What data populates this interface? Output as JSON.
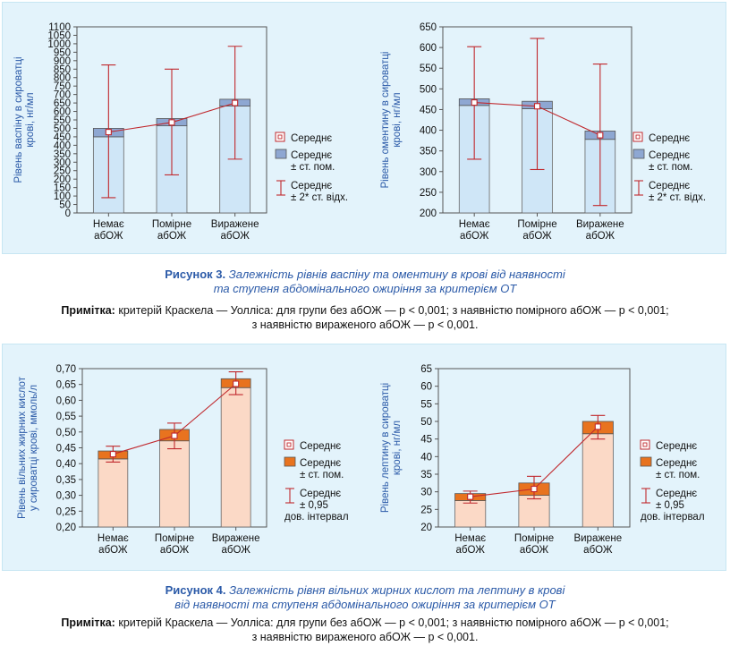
{
  "figure3": {
    "caption_num": "Рисунок 3.",
    "caption_line1": "Залежність рівнів васпіну та оментину в крові від наявності",
    "caption_line2": "та ступеня абдомінального ожиріння за критерієм ОТ",
    "note_label": "Примітка:",
    "note_line1": "критерій Краскела — Уолліса: для групи без абОЖ — p < 0,001; з наявністю помірного абОЖ — p < 0,001;",
    "note_line2": "з наявністю вираженого абОЖ — p < 0,001."
  },
  "figure4": {
    "caption_num": "Рисунок 4.",
    "caption_line1": "Залежність рівня вільних жирних кислот та лептину в крові",
    "caption_line2": "від наявності та ступеня абдомінального ожиріння за критерієм ОТ",
    "note_label": "Примітка:",
    "note_line1": "критерій Краскела — Уолліса: для групи без абОЖ — p < 0,001; з наявністю помірного абОЖ — p < 0,001;",
    "note_line2": "з наявністю вираженого абОЖ — p < 0,001."
  },
  "chart_data": [
    {
      "type": "bar",
      "ylabel_lines": [
        "Рівень васпіну в сироватці",
        "крові, нг/мл"
      ],
      "ylim": [
        0,
        1100
      ],
      "yticks": [
        "0",
        "50",
        "100",
        "150",
        "200",
        "250",
        "300",
        "350",
        "400",
        "450",
        "500",
        "550",
        "600",
        "650",
        "700",
        "750",
        "800",
        "850",
        "900",
        "950",
        "1000",
        "1050",
        "1100"
      ],
      "categories": [
        [
          "Немає",
          "абОЖ"
        ],
        [
          "Помірне",
          "абОЖ"
        ],
        [
          "Виражене",
          "абОЖ"
        ]
      ],
      "mean": [
        478,
        535,
        650
      ],
      "se_low": [
        450,
        515,
        632
      ],
      "se_high": [
        500,
        558,
        672
      ],
      "whisker_low": [
        90,
        225,
        318
      ],
      "whisker_high": [
        875,
        850,
        985
      ],
      "legend": {
        "mean": "Середнє",
        "se": [
          "Середнє",
          "± ст. пом."
        ],
        "ci": [
          "Середнє",
          "± 2* ст. відх."
        ]
      },
      "colors": {
        "bar": "#cfe6f7",
        "box": "#8ea7d2",
        "line": "#c0282d"
      }
    },
    {
      "type": "bar",
      "ylabel_lines": [
        "Рівень оментину в сироватці",
        "крові, нг/мл"
      ],
      "ylim": [
        200,
        650
      ],
      "yticks": [
        "200",
        "250",
        "300",
        "350",
        "400",
        "450",
        "500",
        "550",
        "600",
        "650"
      ],
      "categories": [
        [
          "Немає",
          "абОЖ"
        ],
        [
          "Помірне",
          "абОЖ"
        ],
        [
          "Виражене",
          "абОЖ"
        ]
      ],
      "mean": [
        467,
        458,
        388
      ],
      "se_low": [
        460,
        452,
        378
      ],
      "se_high": [
        476,
        470,
        398
      ],
      "whisker_low": [
        330,
        305,
        218
      ],
      "whisker_high": [
        602,
        622,
        560
      ],
      "legend": {
        "mean": "Середнє",
        "se": [
          "Середнє",
          "± ст. пом."
        ],
        "ci": [
          "Середнє",
          "± 2* ст. відх."
        ]
      },
      "colors": {
        "bar": "#cfe6f7",
        "box": "#8ea7d2",
        "line": "#c0282d"
      }
    },
    {
      "type": "bar",
      "ylabel_lines": [
        "Рівень вільних жирних кислот",
        "у сироватці крові, ммоль/л"
      ],
      "ylim": [
        0.2,
        0.7
      ],
      "yticks": [
        "0,20",
        "0,25",
        "0,30",
        "0,35",
        "0,40",
        "0,45",
        "0,50",
        "0,55",
        "0,60",
        "0,65",
        "0,70"
      ],
      "categories": [
        [
          "Немає",
          "абОЖ"
        ],
        [
          "Помірне",
          "абОЖ"
        ],
        [
          "Виражене",
          "абОЖ"
        ]
      ],
      "mean": [
        0.43,
        0.488,
        0.652
      ],
      "se_low": [
        0.415,
        0.472,
        0.64
      ],
      "se_high": [
        0.44,
        0.508,
        0.668
      ],
      "whisker_low": [
        0.405,
        0.447,
        0.618
      ],
      "whisker_high": [
        0.455,
        0.528,
        0.69
      ],
      "legend": {
        "mean": "Середнє",
        "se": [
          "Середнє",
          "± ст. пом."
        ],
        "ci": [
          "Середнє",
          "± 0,95",
          "дов. інтервал"
        ]
      },
      "colors": {
        "bar": "#fbd9c6",
        "box": "#e8731f",
        "line": "#c0282d"
      }
    },
    {
      "type": "bar",
      "ylabel_lines": [
        "Рівень лептину в сироватці",
        "крові, нг/мл"
      ],
      "ylim": [
        20,
        65
      ],
      "yticks": [
        "20",
        "25",
        "30",
        "35",
        "40",
        "45",
        "50",
        "55",
        "60",
        "65"
      ],
      "categories": [
        [
          "Немає",
          "абОЖ"
        ],
        [
          "Помірне",
          "абОЖ"
        ],
        [
          "Виражене",
          "абОЖ"
        ]
      ],
      "mean": [
        28.6,
        30.8,
        48.5
      ],
      "se_low": [
        27.5,
        29.0,
        46.5
      ],
      "se_high": [
        29.5,
        32.5,
        50.0
      ],
      "whisker_low": [
        26.8,
        28.0,
        45.0
      ],
      "whisker_high": [
        30.2,
        34.4,
        51.7
      ],
      "legend": {
        "mean": "Середнє",
        "se": [
          "Середнє",
          "± ст. пом."
        ],
        "ci": [
          "Середнє",
          "± 0,95",
          "дов. інтервал"
        ]
      },
      "colors": {
        "bar": "#fbd9c6",
        "box": "#e8731f",
        "line": "#c0282d"
      }
    }
  ]
}
